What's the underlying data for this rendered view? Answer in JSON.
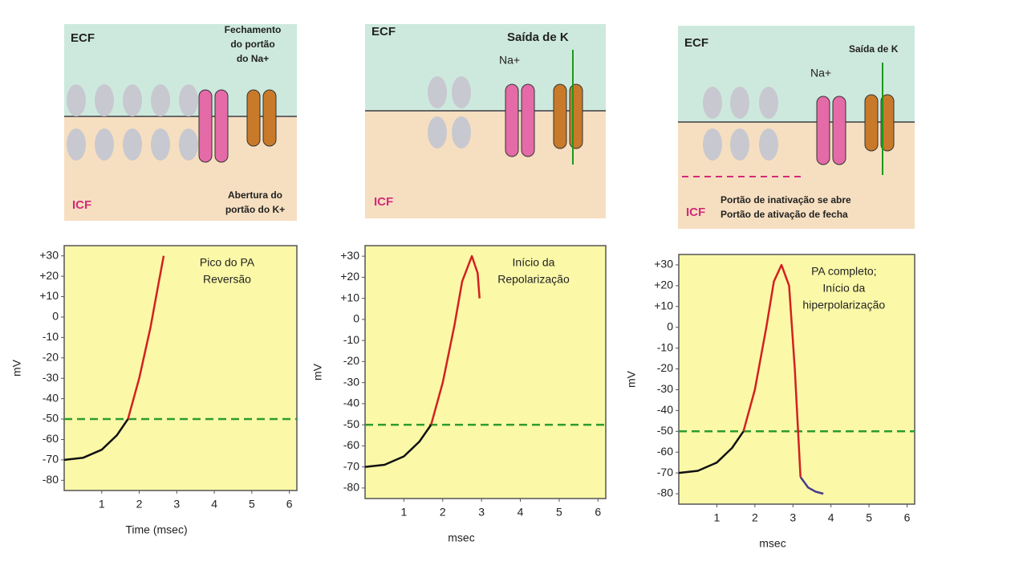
{
  "diagrams": [
    {
      "ecf": "ECF",
      "icf": "ICF",
      "top_label": [
        "Fechamento",
        "do portão",
        "do Na+"
      ],
      "bottom_label": [
        "Abertura do",
        "portão do K+"
      ]
    },
    {
      "ecf": "ECF",
      "icf": "ICF",
      "top_label": [
        "Saída de K"
      ],
      "ion": "Na+"
    },
    {
      "ecf": "ECF",
      "icf": "ICF",
      "top_label": [
        "Saída de K"
      ],
      "ion": "Na+",
      "bottom_label": [
        "Portão de inativação se abre",
        "Portão de ativação de fecha"
      ]
    }
  ],
  "chart_data": [
    {
      "type": "line",
      "annotation": [
        "Pico do PA",
        "Reversão"
      ],
      "y_label": "mV",
      "x_label": "Time (msec)",
      "xlim": [
        0,
        6.2
      ],
      "xticks": [
        1,
        2,
        3,
        4,
        5,
        6
      ],
      "ylim": [
        -85,
        35
      ],
      "yticks": [
        {
          "value": 30,
          "label": "+30"
        },
        {
          "value": 20,
          "label": "+20"
        },
        {
          "value": 10,
          "label": "+10"
        },
        0,
        -10,
        -20,
        -30,
        -40,
        -50,
        -60,
        -70,
        -80
      ],
      "threshold": -50,
      "threshold_color": "#2e9b2e",
      "series": [
        {
          "color": "#111111",
          "x": [
            0,
            0.5,
            1,
            1.4,
            1.7
          ],
          "values": [
            -70,
            -69,
            -65,
            -58,
            -50
          ]
        },
        {
          "color": "#d42020",
          "x": [
            1.7,
            2,
            2.3,
            2.5,
            2.65
          ],
          "values": [
            -50,
            -30,
            -5,
            15,
            30
          ]
        }
      ]
    },
    {
      "type": "line",
      "annotation": [
        "Início da",
        "Repolarização"
      ],
      "y_label": "mV",
      "x_label": "msec",
      "xlim": [
        0,
        6.2
      ],
      "xticks": [
        1,
        2,
        3,
        4,
        5,
        6
      ],
      "ylim": [
        -85,
        35
      ],
      "yticks": [
        {
          "value": 30,
          "label": "+30"
        },
        {
          "value": 20,
          "label": "+20"
        },
        {
          "value": 10,
          "label": "+10"
        },
        0,
        -10,
        -20,
        -30,
        -40,
        -50,
        -60,
        -70,
        -80
      ],
      "threshold": -50,
      "threshold_color": "#2e9b2e",
      "series": [
        {
          "color": "#111111",
          "x": [
            0,
            0.5,
            1,
            1.4,
            1.7
          ],
          "values": [
            -70,
            -69,
            -65,
            -58,
            -50
          ]
        },
        {
          "color": "#d42020",
          "x": [
            1.7,
            2,
            2.3,
            2.5,
            2.75,
            2.9,
            2.95
          ],
          "values": [
            -50,
            -30,
            -3,
            18,
            30,
            22,
            10
          ]
        }
      ]
    },
    {
      "type": "line",
      "annotation": [
        "PA completo;",
        "Início da",
        "hiperpolarização"
      ],
      "y_label": "mV",
      "x_label": "msec",
      "xlim": [
        0,
        6.2
      ],
      "xticks": [
        1,
        2,
        3,
        4,
        5,
        6
      ],
      "ylim": [
        -85,
        35
      ],
      "yticks": [
        {
          "value": 30,
          "label": "+30"
        },
        {
          "value": 20,
          "label": "+20"
        },
        {
          "value": 10,
          "label": "+10"
        },
        0,
        -10,
        -20,
        -30,
        -40,
        -50,
        -60,
        -70,
        -80
      ],
      "threshold": -50,
      "threshold_color": "#2e9b2e",
      "series": [
        {
          "color": "#111111",
          "x": [
            0,
            0.5,
            1,
            1.4,
            1.7
          ],
          "values": [
            -70,
            -69,
            -65,
            -58,
            -50
          ]
        },
        {
          "color": "#d42020",
          "x": [
            1.7,
            2,
            2.3,
            2.5,
            2.7,
            2.9,
            3.05,
            3.2
          ],
          "values": [
            -50,
            -30,
            0,
            22,
            30,
            20,
            -20,
            -72
          ]
        },
        {
          "color": "#4a3a8c",
          "x": [
            3.2,
            3.4,
            3.6,
            3.8
          ],
          "values": [
            -72,
            -77,
            -79,
            -80
          ]
        }
      ]
    }
  ]
}
